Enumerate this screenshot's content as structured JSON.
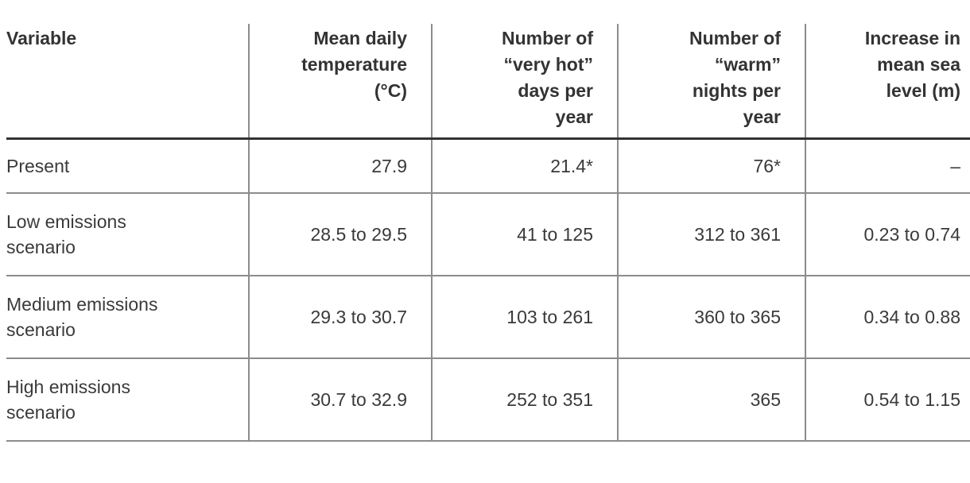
{
  "table": {
    "columns": [
      {
        "id": "variable",
        "label": "Variable"
      },
      {
        "id": "mean_temp",
        "label": "Mean daily\ntemperature\n(°C)"
      },
      {
        "id": "hot_days",
        "label": "Number of\n“very hot”\ndays per\nyear"
      },
      {
        "id": "warm_nights",
        "label": "Number of\n“warm”\nnights per\nyear"
      },
      {
        "id": "sea_level",
        "label": "Increase in\nmean sea\nlevel (m)"
      }
    ],
    "rows": [
      {
        "cells": [
          "Present",
          "27.9",
          "21.4*",
          "76*",
          "–"
        ]
      },
      {
        "cells": [
          "Low emissions\nscenario",
          "28.5 to 29.5",
          "41 to 125",
          "312 to 361",
          "0.23 to 0.74"
        ]
      },
      {
        "cells": [
          "Medium emissions\nscenario",
          "29.3 to 30.7",
          "103 to 261",
          "360 to 365",
          "0.34 to 0.88"
        ]
      },
      {
        "cells": [
          "High emissions\nscenario",
          "30.7 to 32.9",
          "252 to 351",
          "365",
          "0.54 to 1.15"
        ]
      }
    ]
  },
  "colors": {
    "text_body": "#3a3a3a",
    "text_header": "#333333",
    "grid_line": "#8c8c8c",
    "header_rule": "#333333",
    "background": "#ffffff"
  }
}
